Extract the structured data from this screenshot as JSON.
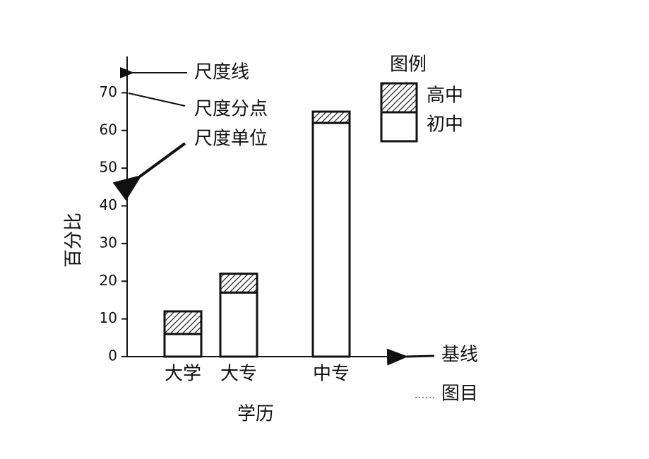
{
  "chart_data": {
    "type": "bar",
    "stacked": true,
    "categories": [
      "大学",
      "大专",
      "中专"
    ],
    "series": [
      {
        "name": "初中",
        "color": "#ffffff",
        "values": [
          6,
          17,
          62
        ]
      },
      {
        "name": "高中",
        "color": "#ffffff",
        "hatch": true,
        "values": [
          6,
          5,
          3
        ]
      }
    ],
    "ylim": [
      0,
      80
    ],
    "yticks": [
      0,
      10,
      20,
      30,
      40,
      50,
      60,
      70
    ],
    "x_label": "学历",
    "y_label": "百分比",
    "legend_title": "图例",
    "legend": "upper right",
    "annotations": [
      "尺度线",
      "尺度分点",
      "尺度单位",
      "基线",
      "图目"
    ]
  }
}
